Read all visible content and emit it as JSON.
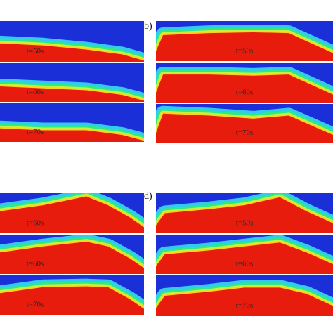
{
  "panels": [
    {
      "snapshots": [
        "t=50s",
        "t=60s",
        "t=70s"
      ]
    },
    {
      "label": "b)",
      "snapshots": [
        "t=50s",
        "t=60s",
        "t=70s"
      ]
    },
    {
      "snapshots": [
        "t=50s",
        "t=60s",
        "t=70s"
      ]
    },
    {
      "label": "d)",
      "snapshots": [
        "t=50s",
        "t=60s",
        "t=70s"
      ]
    }
  ]
}
